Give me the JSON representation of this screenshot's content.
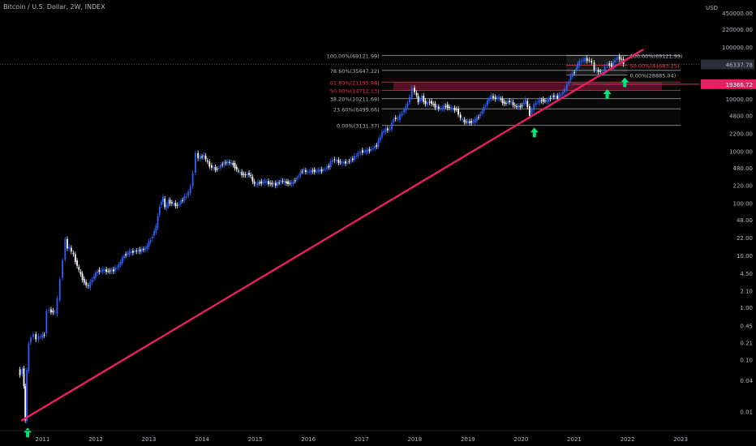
{
  "header": {
    "symbol": "Bitcoin / U.S. Dollar, 2W, INDEX"
  },
  "chart_data": {
    "type": "candlestick",
    "scale": "log",
    "currency": "USD",
    "y_ticks": [
      "450000.00",
      "220000.00",
      "100000.00",
      "46337.78",
      "10000.00",
      "4800.00",
      "2200.00",
      "1000.00",
      "480.00",
      "220.00",
      "100.00",
      "48.00",
      "22.00",
      "10.00",
      "4.50",
      "2.10",
      "1.00",
      "0.45",
      "0.21",
      "0.10",
      "0.04",
      "0.01"
    ],
    "y_tick_values": [
      450000,
      220000,
      100000,
      46337.78,
      10000,
      4800,
      2200,
      1000,
      480,
      220,
      100,
      48,
      22,
      10,
      4.5,
      2.1,
      1,
      0.45,
      0.21,
      0.1,
      0.04,
      0.01
    ],
    "x_ticks": [
      "2011",
      "2012",
      "2013",
      "2014",
      "2015",
      "2016",
      "2017",
      "2018",
      "2019",
      "2020",
      "2021",
      "2022",
      "2023"
    ],
    "ylim": [
      0.005,
      800000
    ],
    "xlim": [
      2010.2,
      2023.35
    ],
    "price_series": [
      [
        2010.55,
        0.065
      ],
      [
        2010.6,
        0.05
      ],
      [
        2010.64,
        0.07
      ],
      [
        2010.66,
        0.03
      ],
      [
        2010.69,
        0.007
      ],
      [
        2010.72,
        0.06
      ],
      [
        2010.76,
        0.2
      ],
      [
        2010.8,
        0.28
      ],
      [
        2010.85,
        0.3
      ],
      [
        2010.9,
        0.25
      ],
      [
        2010.95,
        0.27
      ],
      [
        2011.05,
        0.3
      ],
      [
        2011.1,
        0.9
      ],
      [
        2011.18,
        0.85
      ],
      [
        2011.25,
        0.8
      ],
      [
        2011.3,
        1.4
      ],
      [
        2011.35,
        3.5
      ],
      [
        2011.4,
        8.5
      ],
      [
        2011.45,
        20
      ],
      [
        2011.48,
        14
      ],
      [
        2011.52,
        14
      ],
      [
        2011.6,
        10
      ],
      [
        2011.7,
        5
      ],
      [
        2011.8,
        3
      ],
      [
        2011.88,
        2.5
      ],
      [
        2011.95,
        3.5
      ],
      [
        2012.05,
        5
      ],
      [
        2012.15,
        5.2
      ],
      [
        2012.25,
        5
      ],
      [
        2012.35,
        5.2
      ],
      [
        2012.45,
        6.5
      ],
      [
        2012.55,
        10
      ],
      [
        2012.65,
        11.5
      ],
      [
        2012.75,
        12
      ],
      [
        2012.85,
        12.5
      ],
      [
        2012.95,
        13.5
      ],
      [
        2013.05,
        20
      ],
      [
        2013.15,
        35
      ],
      [
        2013.22,
        90
      ],
      [
        2013.28,
        130
      ],
      [
        2013.32,
        80
      ],
      [
        2013.38,
        110
      ],
      [
        2013.45,
        100
      ],
      [
        2013.55,
        90
      ],
      [
        2013.65,
        120
      ],
      [
        2013.72,
        140
      ],
      [
        2013.8,
        200
      ],
      [
        2013.85,
        400
      ],
      [
        2013.9,
        900
      ],
      [
        2013.95,
        750
      ],
      [
        2014.05,
        820
      ],
      [
        2014.12,
        600
      ],
      [
        2014.2,
        480
      ],
      [
        2014.3,
        450
      ],
      [
        2014.4,
        580
      ],
      [
        2014.5,
        620
      ],
      [
        2014.6,
        560
      ],
      [
        2014.7,
        400
      ],
      [
        2014.8,
        350
      ],
      [
        2014.9,
        370
      ],
      [
        2015.0,
        230
      ],
      [
        2015.1,
        250
      ],
      [
        2015.2,
        260
      ],
      [
        2015.3,
        240
      ],
      [
        2015.4,
        230
      ],
      [
        2015.5,
        270
      ],
      [
        2015.6,
        250
      ],
      [
        2015.7,
        240
      ],
      [
        2015.8,
        310
      ],
      [
        2015.9,
        430
      ],
      [
        2016.0,
        400
      ],
      [
        2016.1,
        420
      ],
      [
        2016.2,
        420
      ],
      [
        2016.3,
        440
      ],
      [
        2016.4,
        520
      ],
      [
        2016.47,
        700
      ],
      [
        2016.55,
        650
      ],
      [
        2016.65,
        600
      ],
      [
        2016.75,
        620
      ],
      [
        2016.85,
        720
      ],
      [
        2016.95,
        900
      ],
      [
        2017.0,
        990
      ],
      [
        2017.1,
        1000
      ],
      [
        2017.2,
        1100
      ],
      [
        2017.3,
        1300
      ],
      [
        2017.4,
        2300
      ],
      [
        2017.47,
        2600
      ],
      [
        2017.55,
        2700
      ],
      [
        2017.62,
        4300
      ],
      [
        2017.7,
        4200
      ],
      [
        2017.78,
        5500
      ],
      [
        2017.85,
        7000
      ],
      [
        2017.92,
        11000
      ],
      [
        2017.97,
        16000
      ],
      [
        2018.02,
        14000
      ],
      [
        2018.08,
        9000
      ],
      [
        2018.15,
        11000
      ],
      [
        2018.22,
        8000
      ],
      [
        2018.3,
        9000
      ],
      [
        2018.4,
        7200
      ],
      [
        2018.5,
        6500
      ],
      [
        2018.6,
        7500
      ],
      [
        2018.7,
        6500
      ],
      [
        2018.8,
        6400
      ],
      [
        2018.88,
        4200
      ],
      [
        2018.95,
        3700
      ],
      [
        2019.05,
        3600
      ],
      [
        2019.15,
        3900
      ],
      [
        2019.25,
        5200
      ],
      [
        2019.35,
        8000
      ],
      [
        2019.45,
        11500
      ],
      [
        2019.5,
        10500
      ],
      [
        2019.6,
        10500
      ],
      [
        2019.7,
        8200
      ],
      [
        2019.8,
        9200
      ],
      [
        2019.9,
        7300
      ],
      [
        2020.0,
        7200
      ],
      [
        2020.1,
        9500
      ],
      [
        2020.18,
        5000
      ],
      [
        2020.22,
        6500
      ],
      [
        2020.3,
        8800
      ],
      [
        2020.4,
        9500
      ],
      [
        2020.5,
        9200
      ],
      [
        2020.6,
        11500
      ],
      [
        2020.7,
        10800
      ],
      [
        2020.8,
        13500
      ],
      [
        2020.88,
        18500
      ],
      [
        2020.95,
        28000
      ],
      [
        2021.02,
        34000
      ],
      [
        2021.08,
        47000
      ],
      [
        2021.15,
        55000
      ],
      [
        2021.22,
        58000
      ],
      [
        2021.3,
        56000
      ],
      [
        2021.35,
        49000
      ],
      [
        2021.4,
        37000
      ],
      [
        2021.47,
        34000
      ],
      [
        2021.55,
        32000
      ],
      [
        2021.6,
        45000
      ],
      [
        2021.68,
        47000
      ],
      [
        2021.72,
        43000
      ],
      [
        2021.78,
        57000
      ],
      [
        2021.83,
        63000
      ],
      [
        2021.87,
        61000
      ],
      [
        2021.9,
        57000
      ],
      [
        2021.95,
        48000
      ]
    ],
    "fib_left": {
      "x_range": [
        2017.38,
        2023.0
      ],
      "levels": [
        {
          "label": "100.00%(69121.99)",
          "value": 69121.99,
          "color": "#b2b5be"
        },
        {
          "label": "78.60%(35647.22)",
          "value": 35647.22,
          "color": "#b2b5be"
        },
        {
          "label": "61.80%(21195.98)",
          "value": 21195.98,
          "color": "#f23645"
        },
        {
          "label": "50.00%(14712.13)",
          "value": 14712.13,
          "color": "#f23645"
        },
        {
          "label": "38.20%(10211.69)",
          "value": 10211.69,
          "color": "#b2b5be"
        },
        {
          "label": "23.60%(6499.66)",
          "value": 6499.66,
          "color": "#b2b5be"
        },
        {
          "label": "0.00%(3131.37)",
          "value": 3131.37,
          "color": "#b2b5be"
        }
      ]
    },
    "fib_right": {
      "x_range": [
        2020.85,
        2022.0
      ],
      "levels": [
        {
          "label": "100.00%(69121.99)",
          "value": 69121.99,
          "color": "#b2b5be"
        },
        {
          "label": "50.00%(44683.25)",
          "value": 44683.25,
          "color": "#f23645"
        },
        {
          "label": "0.00%(28885.04)",
          "value": 28885.04,
          "color": "#b2b5be"
        }
      ]
    },
    "trendline": {
      "from": [
        2010.6,
        0.0067
      ],
      "to": [
        2022.3,
        90000
      ],
      "color": "#e91e63"
    },
    "zone": {
      "x_range": [
        2017.6,
        2022.65
      ],
      "y_range": [
        14712.13,
        21195.98
      ],
      "color": "#e91e63"
    },
    "horizontal_line": {
      "value": 19366.72,
      "label": "19366.72",
      "color": "#e91e63"
    },
    "current_price": {
      "value": 46337.78,
      "label": "46337.78"
    },
    "arrows": [
      {
        "x": 2010.72,
        "y": 0.004
      },
      {
        "x": 2020.25,
        "y": 2300
      },
      {
        "x": 2021.62,
        "y": 12500
      },
      {
        "x": 2021.95,
        "y": 21000
      }
    ],
    "colors": {
      "up": "#2962ff",
      "down": "#ffffff",
      "trend": "#e91e63",
      "arrow": "#00e676",
      "axis_text": "#b2b5be"
    }
  }
}
